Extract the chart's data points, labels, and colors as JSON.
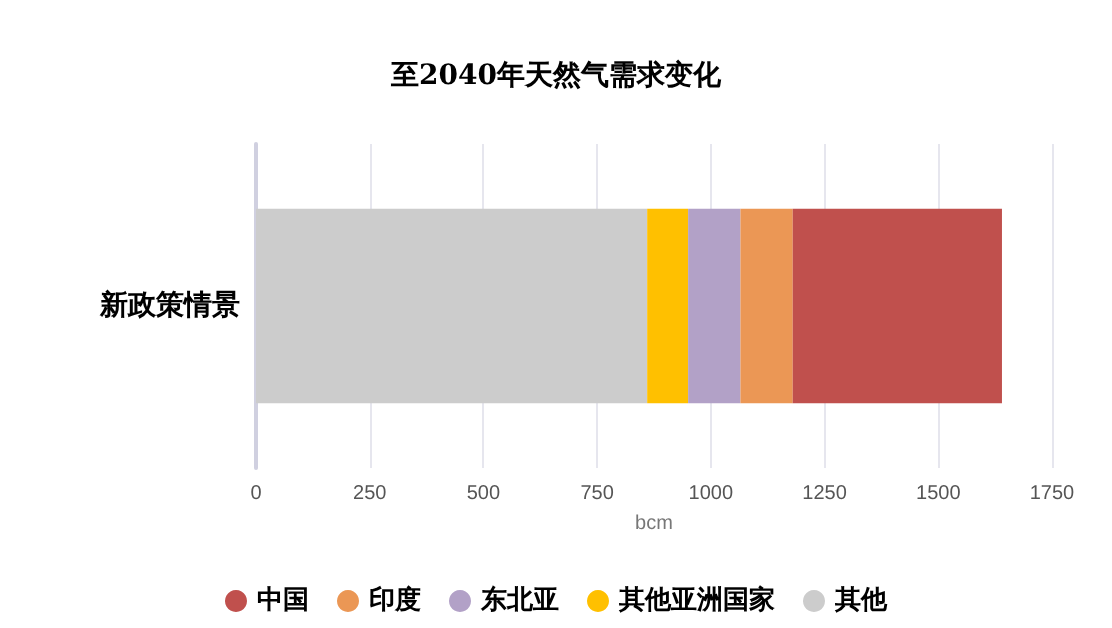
{
  "chart_data": {
    "type": "bar",
    "title": "至2040年天然气需求变化",
    "orientation": "horizontal",
    "stacked": true,
    "categories": [
      "新政策情景"
    ],
    "xlabel": "bcm",
    "xlim": [
      0,
      1750
    ],
    "xticks": [
      0,
      250,
      500,
      750,
      1000,
      1250,
      1500,
      1750
    ],
    "grid": "x",
    "legend": "bottom",
    "series": [
      {
        "name": "其他",
        "color": "#cccccc",
        "values": [
          860
        ]
      },
      {
        "name": "其他亚洲国家",
        "color": "#ffc000",
        "values": [
          90
        ]
      },
      {
        "name": "东北亚",
        "color": "#b2a1c7",
        "values": [
          115
        ]
      },
      {
        "name": "印度",
        "color": "#eb9755",
        "values": [
          115
        ]
      },
      {
        "name": "中国",
        "color": "#c0504d",
        "values": [
          460
        ]
      }
    ]
  }
}
